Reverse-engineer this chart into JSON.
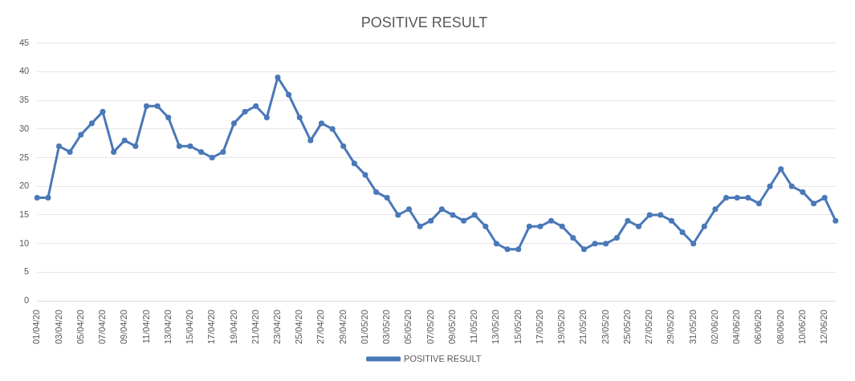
{
  "chart_data": {
    "type": "line",
    "title": "POSITIVE RESULT",
    "categories": [
      "01/04/20",
      null,
      "03/04/20",
      null,
      "05/04/20",
      null,
      "07/04/20",
      null,
      "09/04/20",
      null,
      "11/04/20",
      null,
      "13/04/20",
      null,
      "15/04/20",
      null,
      "17/04/20",
      null,
      "19/04/20",
      null,
      "21/04/20",
      null,
      "23/04/20",
      null,
      "25/04/20",
      null,
      "27/04/20",
      null,
      "29/04/20",
      null,
      "01/05/20",
      null,
      "03/05/20",
      null,
      "05/05/20",
      null,
      "07/05/20",
      null,
      "09/05/20",
      null,
      "11/05/20",
      null,
      "13/05/20",
      null,
      "15/05/20",
      null,
      "17/05/20",
      null,
      "19/05/20",
      null,
      "21/05/20",
      null,
      "23/05/20",
      null,
      "25/05/20",
      null,
      "27/05/20",
      null,
      "29/05/20",
      null,
      "31/05/20",
      null,
      "02/06/20",
      null,
      "04/06/20",
      null,
      "06/06/20",
      null,
      "08/06/20",
      null,
      "10/06/20",
      null,
      "12/06/20",
      null
    ],
    "series": [
      {
        "name": "POSITIVE RESULT",
        "color": "#4a78b8",
        "values": [
          18,
          18,
          27,
          26,
          29,
          31,
          33,
          26,
          28,
          27,
          34,
          34,
          32,
          27,
          27,
          26,
          25,
          26,
          31,
          33,
          34,
          32,
          39,
          36,
          32,
          28,
          31,
          30,
          27,
          24,
          22,
          19,
          18,
          15,
          16,
          13,
          14,
          16,
          15,
          14,
          15,
          13,
          10,
          9,
          9,
          13,
          13,
          14,
          13,
          11,
          9,
          10,
          10,
          11,
          14,
          13,
          15,
          15,
          14,
          12,
          10,
          13,
          16,
          18,
          18,
          18,
          17,
          20,
          23,
          20,
          19,
          17,
          18,
          14
        ]
      }
    ],
    "ylim": [
      0,
      45
    ],
    "yticks": [
      0,
      5,
      10,
      15,
      20,
      25,
      30,
      35,
      40,
      45
    ],
    "grid": "y",
    "legend": "bottom",
    "marker": "circle",
    "line_style": "solid"
  }
}
